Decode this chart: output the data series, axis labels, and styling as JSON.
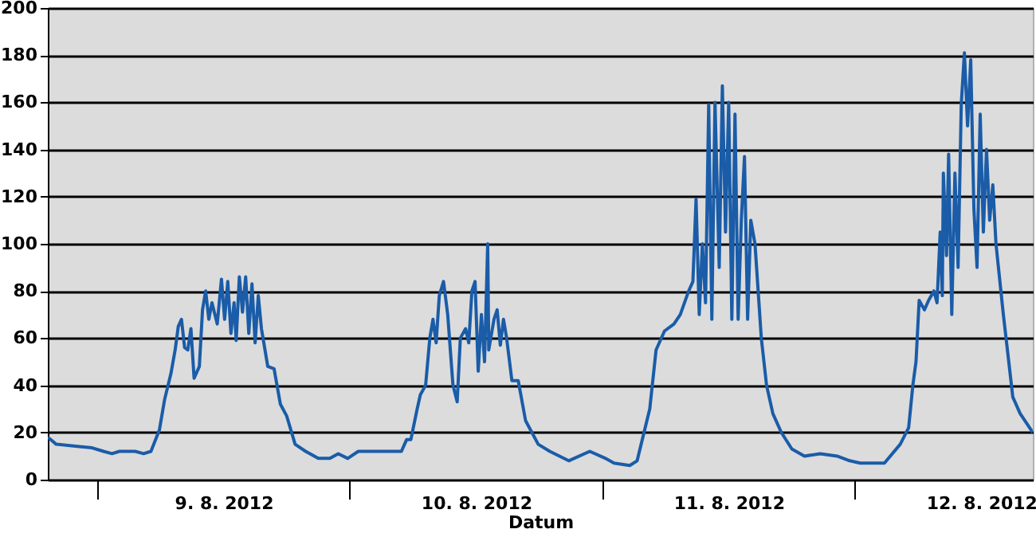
{
  "chart_data": {
    "type": "line",
    "xlabel": "Datum",
    "xlim": [
      "2012-08-08T19:18",
      "2012-08-12T16:54"
    ],
    "xticks": [
      {
        "value": "2012-08-09T00:00",
        "label": null
      },
      {
        "value": "2012-08-09T12:00",
        "label": "9. 8. 2012"
      },
      {
        "value": "2012-08-10T00:00",
        "label": null
      },
      {
        "value": "2012-08-10T12:00",
        "label": "10. 8. 2012"
      },
      {
        "value": "2012-08-11T00:00",
        "label": null
      },
      {
        "value": "2012-08-11T12:00",
        "label": "11. 8. 2012"
      },
      {
        "value": "2012-08-12T00:00",
        "label": null
      },
      {
        "value": "2012-08-12T12:00",
        "label": "12. 8. 2012"
      }
    ],
    "ylim": [
      0,
      200
    ],
    "yticks": [
      0,
      20,
      40,
      60,
      80,
      100,
      120,
      140,
      160,
      180,
      200
    ],
    "grid": "y",
    "marker": "none",
    "line_style": "solid",
    "series": [
      {
        "color": "#1a5ca8",
        "x": [
          "2012-08-08T19:18",
          "2012-08-08T20:06",
          "2012-08-08T22:18",
          "2012-08-08T23:30",
          "2012-08-09T00:36",
          "2012-08-09T01:24",
          "2012-08-09T02:06",
          "2012-08-09T03:36",
          "2012-08-09T04:24",
          "2012-08-09T05:06",
          "2012-08-09T05:54",
          "2012-08-09T06:24",
          "2012-08-09T07:00",
          "2012-08-09T07:24",
          "2012-08-09T07:42",
          "2012-08-09T08:00",
          "2012-08-09T08:18",
          "2012-08-09T08:36",
          "2012-08-09T08:54",
          "2012-08-09T09:12",
          "2012-08-09T09:42",
          "2012-08-09T10:00",
          "2012-08-09T10:18",
          "2012-08-09T10:36",
          "2012-08-09T10:54",
          "2012-08-09T11:24",
          "2012-08-09T11:48",
          "2012-08-09T12:06",
          "2012-08-09T12:24",
          "2012-08-09T12:42",
          "2012-08-09T13:00",
          "2012-08-09T13:12",
          "2012-08-09T13:30",
          "2012-08-09T13:48",
          "2012-08-09T14:06",
          "2012-08-09T14:24",
          "2012-08-09T14:42",
          "2012-08-09T15:00",
          "2012-08-09T15:18",
          "2012-08-09T15:36",
          "2012-08-09T16:12",
          "2012-08-09T16:48",
          "2012-08-09T17:24",
          "2012-08-09T18:00",
          "2012-08-09T18:48",
          "2012-08-09T19:48",
          "2012-08-09T21:00",
          "2012-08-09T22:06",
          "2012-08-09T22:54",
          "2012-08-09T23:48",
          "2012-08-10T00:48",
          "2012-08-10T03:54",
          "2012-08-10T04:54",
          "2012-08-10T05:24",
          "2012-08-10T05:48",
          "2012-08-10T06:24",
          "2012-08-10T06:42",
          "2012-08-10T07:12",
          "2012-08-10T07:36",
          "2012-08-10T07:54",
          "2012-08-10T08:12",
          "2012-08-10T08:30",
          "2012-08-10T08:54",
          "2012-08-10T09:18",
          "2012-08-10T09:48",
          "2012-08-10T10:12",
          "2012-08-10T10:30",
          "2012-08-10T11:00",
          "2012-08-10T11:18",
          "2012-08-10T11:36",
          "2012-08-10T11:54",
          "2012-08-10T12:12",
          "2012-08-10T12:30",
          "2012-08-10T12:48",
          "2012-08-10T13:06",
          "2012-08-10T13:12",
          "2012-08-10T13:42",
          "2012-08-10T14:00",
          "2012-08-10T14:18",
          "2012-08-10T14:36",
          "2012-08-10T14:54",
          "2012-08-10T15:24",
          "2012-08-10T16:00",
          "2012-08-10T16:42",
          "2012-08-10T17:54",
          "2012-08-10T19:00",
          "2012-08-10T20:48",
          "2012-08-10T22:48",
          "2012-08-11T00:18",
          "2012-08-11T01:06",
          "2012-08-11T02:36",
          "2012-08-11T03:18",
          "2012-08-11T04:30",
          "2012-08-11T05:06",
          "2012-08-11T05:54",
          "2012-08-11T06:48",
          "2012-08-11T07:24",
          "2012-08-11T08:12",
          "2012-08-11T08:36",
          "2012-08-11T08:54",
          "2012-08-11T09:12",
          "2012-08-11T09:30",
          "2012-08-11T09:48",
          "2012-08-11T10:06",
          "2012-08-11T10:24",
          "2012-08-11T10:42",
          "2012-08-11T11:06",
          "2012-08-11T11:24",
          "2012-08-11T11:42",
          "2012-08-11T12:00",
          "2012-08-11T12:18",
          "2012-08-11T12:36",
          "2012-08-11T12:54",
          "2012-08-11T13:12",
          "2012-08-11T13:30",
          "2012-08-11T13:48",
          "2012-08-11T14:06",
          "2012-08-11T14:30",
          "2012-08-11T15:06",
          "2012-08-11T15:36",
          "2012-08-11T16:12",
          "2012-08-11T17:00",
          "2012-08-11T18:00",
          "2012-08-11T19:12",
          "2012-08-11T20:42",
          "2012-08-11T22:18",
          "2012-08-11T23:30",
          "2012-08-12T00:30",
          "2012-08-12T02:48",
          "2012-08-12T04:18",
          "2012-08-12T05:06",
          "2012-08-12T05:30",
          "2012-08-12T05:48",
          "2012-08-12T06:06",
          "2012-08-12T06:36",
          "2012-08-12T07:00",
          "2012-08-12T07:30",
          "2012-08-12T07:48",
          "2012-08-12T08:06",
          "2012-08-12T08:18",
          "2012-08-12T08:24",
          "2012-08-12T08:42",
          "2012-08-12T08:54",
          "2012-08-12T09:12",
          "2012-08-12T09:30",
          "2012-08-12T09:48",
          "2012-08-12T10:06",
          "2012-08-12T10:24",
          "2012-08-12T10:42",
          "2012-08-12T11:00",
          "2012-08-12T11:18",
          "2012-08-12T11:36",
          "2012-08-12T11:54",
          "2012-08-12T12:12",
          "2012-08-12T12:30",
          "2012-08-12T12:48",
          "2012-08-12T13:06",
          "2012-08-12T13:24",
          "2012-08-12T14:06",
          "2012-08-12T15:00",
          "2012-08-12T15:42",
          "2012-08-12T16:54"
        ],
        "values": [
          18,
          15,
          14,
          13.5,
          12,
          11,
          12,
          12,
          11,
          12,
          21,
          34,
          45,
          55,
          65,
          68,
          56,
          55,
          64,
          43,
          48,
          72,
          80,
          68,
          75,
          66,
          85,
          68,
          84,
          62,
          75,
          59,
          86,
          71,
          86,
          62,
          83,
          58,
          78,
          64,
          48,
          47,
          32,
          27,
          15,
          12,
          9,
          9,
          11,
          9,
          12,
          12,
          12,
          17,
          17,
          30,
          36,
          40,
          60,
          68,
          58,
          78,
          84,
          70,
          40,
          33,
          60,
          64,
          58,
          80,
          84,
          46,
          70,
          50,
          100,
          55,
          68,
          72,
          57,
          68,
          60,
          42,
          42,
          25,
          15,
          12,
          8,
          12,
          9,
          7,
          6,
          8,
          30,
          55,
          63,
          66,
          70,
          80,
          84,
          119,
          70,
          100,
          75,
          159,
          68,
          160,
          90,
          167,
          105,
          160,
          68,
          155,
          68,
          110,
          137,
          68,
          110,
          100,
          60,
          40,
          28,
          20,
          13,
          10,
          11,
          10,
          8,
          7,
          7,
          15,
          22,
          40,
          50,
          76,
          72,
          76,
          80,
          75,
          105,
          78,
          130,
          95,
          138,
          70,
          130,
          90,
          159,
          181,
          150,
          178,
          115,
          90,
          155,
          105,
          140,
          110,
          125,
          100,
          70,
          35,
          28,
          20
        ]
      }
    ]
  }
}
